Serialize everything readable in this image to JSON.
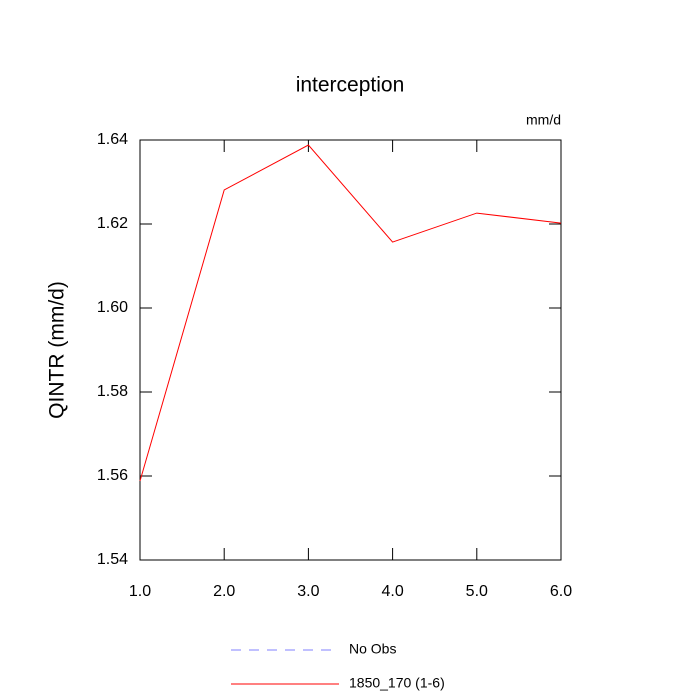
{
  "chart_data": {
    "type": "line",
    "title": "interception",
    "units": "mm/d",
    "y_label": "QINTR  (mm/d)",
    "x": [
      1,
      2,
      3,
      4,
      5,
      6
    ],
    "series": [
      {
        "name": "No Obs",
        "color": "#8080ff",
        "dash": true,
        "values": [
          null,
          null,
          null,
          null,
          null,
          null
        ]
      },
      {
        "name": "1850_170 (1-6)",
        "color": "#ff0000",
        "dash": false,
        "values": [
          1.5588,
          1.6281,
          1.6388,
          1.6157,
          1.6226,
          1.6202
        ]
      }
    ],
    "xlim": [
      1,
      6
    ],
    "xticks": [
      {
        "value": 1,
        "label": "1.0"
      },
      {
        "value": 2,
        "label": "2.0"
      },
      {
        "value": 3,
        "label": "3.0"
      },
      {
        "value": 4,
        "label": "4.0"
      },
      {
        "value": 5,
        "label": "5.0"
      },
      {
        "value": 6,
        "label": "6.0"
      }
    ],
    "ylim": [
      1.54,
      1.64
    ],
    "yticks": [
      1.54,
      1.56,
      1.58,
      {
        "value": 1.6,
        "label": "1.60"
      },
      1.62,
      1.64
    ]
  }
}
